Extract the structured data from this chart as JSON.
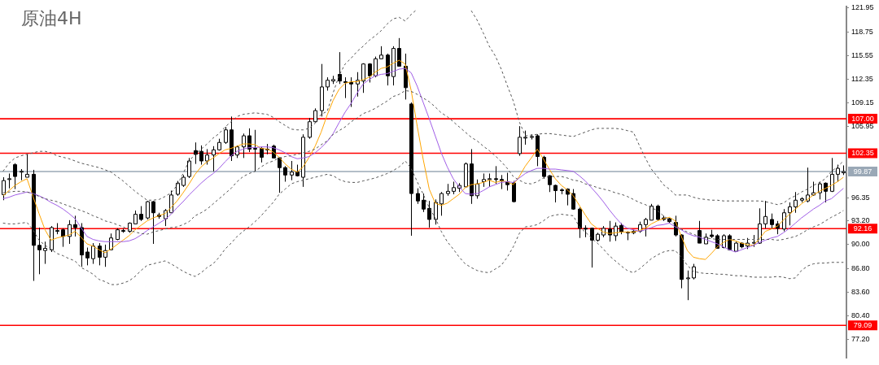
{
  "chart_data": {
    "type": "candlestick",
    "title": "原油4H",
    "categories": [
      null,
      null,
      null,
      null,
      null,
      null,
      null,
      null,
      null,
      null,
      null,
      null,
      null,
      null,
      null,
      null,
      null,
      null,
      null,
      null,
      null,
      null,
      null,
      null,
      null,
      null,
      null,
      null,
      null,
      null,
      null,
      null,
      null,
      null,
      null,
      null,
      null,
      null,
      null,
      null,
      null,
      null,
      null,
      null,
      null,
      null,
      null,
      null,
      null,
      null,
      null,
      null,
      null,
      null,
      null,
      null,
      null,
      null,
      null,
      null,
      null,
      null,
      null,
      null,
      null,
      null,
      null,
      null,
      null,
      null,
      null,
      null,
      null,
      null,
      null,
      null,
      null,
      null,
      null,
      null,
      null,
      null,
      null,
      null,
      null,
      null,
      null,
      null,
      null,
      null,
      null,
      null,
      null,
      null,
      null,
      null,
      null,
      null,
      null,
      null,
      null,
      null,
      null,
      null,
      null,
      null,
      null,
      null,
      null,
      null,
      null,
      null,
      null,
      null,
      null,
      null,
      null,
      null,
      null,
      null,
      null,
      null,
      null,
      null,
      null,
      null,
      null,
      null,
      null,
      null,
      null,
      null,
      null,
      null,
      null,
      null,
      null,
      null,
      null,
      null,
      null
    ],
    "ohlc": [
      [
        96.75,
        99.1,
        96.0,
        98.65
      ],
      [
        98.8,
        99.6,
        97.6,
        98.9
      ],
      [
        100.8,
        101.0,
        97.5,
        99.2
      ],
      [
        99.8,
        100.2,
        98.7,
        99.9
      ],
      [
        99.1,
        102.2,
        99.1,
        99.5
      ],
      [
        99.5,
        100.1,
        85.1,
        89.9
      ],
      [
        89.9,
        92.3,
        86.0,
        89.3
      ],
      [
        89.2,
        90.4,
        87.4,
        89.5
      ],
      [
        89.3,
        92.5,
        89.0,
        92.3
      ],
      [
        91.8,
        92.9,
        91.4,
        91.9
      ],
      [
        92.0,
        92.2,
        89.7,
        91.1
      ],
      [
        91.1,
        93.3,
        90.1,
        92.7
      ],
      [
        92.7,
        93.9,
        91.1,
        92.3
      ],
      [
        92.3,
        92.9,
        87.0,
        88.6
      ],
      [
        89.0,
        89.6,
        87.2,
        88.2
      ],
      [
        88.1,
        90.2,
        87.4,
        89.8
      ],
      [
        89.8,
        90.2,
        87.2,
        88.3
      ],
      [
        88.3,
        90.0,
        87.0,
        89.2
      ],
      [
        89.3,
        91.5,
        89.3,
        90.9
      ],
      [
        90.7,
        92.2,
        90.6,
        92.0
      ],
      [
        91.9,
        92.2,
        91.6,
        91.8
      ],
      [
        91.8,
        93.0,
        91.6,
        92.9
      ],
      [
        92.8,
        94.6,
        92.8,
        94.1
      ],
      [
        94.1,
        95.2,
        93.2,
        93.4
      ],
      [
        93.6,
        95.9,
        93.4,
        95.8
      ],
      [
        95.8,
        95.9,
        90.1,
        94.3
      ],
      [
        94.0,
        94.3,
        93.5,
        93.8
      ],
      [
        93.5,
        94.8,
        92.5,
        94.6
      ],
      [
        94.3,
        97.3,
        94.3,
        96.7
      ],
      [
        96.8,
        98.6,
        96.6,
        98.3
      ],
      [
        98.0,
        99.4,
        97.8,
        99.1
      ],
      [
        99.2,
        101.7,
        99.0,
        101.3
      ],
      [
        102.7,
        103.8,
        100.9,
        102.2
      ],
      [
        102.6,
        103.4,
        100.8,
        101.3
      ],
      [
        101.3,
        102.9,
        100.8,
        102.1
      ],
      [
        102.1,
        103.3,
        99.9,
        102.8
      ],
      [
        102.8,
        104.3,
        102.7,
        103.8
      ],
      [
        103.8,
        105.9,
        103.6,
        105.5
      ],
      [
        105.5,
        107.3,
        101.3,
        102.0
      ],
      [
        102.1,
        103.4,
        101.7,
        103.2
      ],
      [
        103.2,
        105.0,
        101.7,
        104.7
      ],
      [
        104.7,
        105.7,
        102.5,
        102.9
      ],
      [
        102.9,
        105.5,
        99.9,
        103.0
      ],
      [
        103.0,
        103.2,
        101.1,
        101.8
      ],
      [
        102.8,
        103.6,
        102.2,
        102.9
      ],
      [
        103.3,
        103.5,
        101.7,
        101.7
      ],
      [
        101.7,
        101.8,
        97.0,
        100.4
      ],
      [
        100.4,
        100.6,
        98.5,
        99.4
      ],
      [
        99.4,
        101.3,
        98.7,
        99.8
      ],
      [
        99.8,
        100.8,
        99.2,
        99.3
      ],
      [
        99.1,
        104.9,
        97.8,
        104.5
      ],
      [
        104.5,
        107.1,
        104.3,
        106.6
      ],
      [
        106.6,
        108.4,
        106.5,
        108.1
      ],
      [
        108.1,
        114.4,
        107.3,
        111.3
      ],
      [
        111.3,
        112.6,
        110.8,
        112.2
      ],
      [
        112.1,
        112.8,
        111.7,
        112.3
      ],
      [
        113.0,
        116.0,
        111.7,
        112.1
      ],
      [
        112.0,
        112.6,
        109.8,
        111.9
      ],
      [
        111.9,
        112.6,
        108.6,
        111.7
      ],
      [
        111.7,
        113.3,
        110.0,
        112.2
      ],
      [
        112.1,
        114.5,
        110.5,
        114.4
      ],
      [
        114.4,
        114.5,
        111.9,
        112.8
      ],
      [
        112.8,
        115.4,
        112.6,
        115.1
      ],
      [
        115.1,
        116.8,
        115.1,
        115.6
      ],
      [
        115.6,
        115.8,
        111.5,
        112.8
      ],
      [
        112.7,
        116.8,
        111.5,
        116.5
      ],
      [
        116.5,
        117.9,
        114.1,
        114.1
      ],
      [
        114.1,
        115.8,
        109.6,
        111.2
      ],
      [
        109.0,
        109.2,
        91.2,
        96.9
      ],
      [
        96.9,
        97.6,
        95.5,
        95.9
      ],
      [
        96.0,
        96.9,
        94.4,
        94.8
      ],
      [
        94.9,
        95.9,
        92.3,
        93.4
      ],
      [
        93.4,
        96.1,
        92.7,
        95.7
      ],
      [
        95.5,
        97.1,
        93.9,
        96.9
      ],
      [
        96.9,
        98.2,
        96.6,
        97.2
      ],
      [
        97.2,
        98.5,
        96.8,
        97.7
      ],
      [
        97.6,
        98.3,
        97.1,
        98.0
      ],
      [
        97.8,
        101.1,
        97.8,
        100.9
      ],
      [
        100.9,
        102.9,
        95.5,
        96.6
      ],
      [
        96.6,
        98.8,
        96.2,
        98.2
      ],
      [
        98.5,
        99.6,
        97.8,
        98.8
      ],
      [
        98.8,
        99.6,
        97.8,
        98.9
      ],
      [
        98.9,
        100.6,
        98.2,
        98.8
      ],
      [
        98.8,
        99.4,
        97.5,
        98.6
      ],
      [
        98.5,
        99.7,
        97.3,
        98.1
      ],
      [
        98.3,
        98.6,
        95.7,
        95.8
      ],
      [
        102.3,
        106.0,
        102.0,
        104.5
      ],
      [
        104.4,
        105.4,
        103.5,
        104.5
      ],
      [
        104.5,
        104.9,
        104.2,
        104.6
      ],
      [
        104.7,
        104.9,
        100.6,
        101.9
      ],
      [
        101.8,
        102.0,
        98.9,
        99.2
      ],
      [
        99.3,
        99.4,
        97.1,
        98.1
      ],
      [
        98.0,
        98.1,
        95.7,
        97.3
      ],
      [
        97.4,
        97.6,
        96.8,
        97.3
      ],
      [
        97.5,
        97.6,
        95.3,
        96.8
      ],
      [
        96.9,
        97.5,
        94.7,
        94.8
      ],
      [
        94.8,
        95.0,
        90.9,
        92.2
      ],
      [
        92.2,
        92.6,
        91.0,
        92.1
      ],
      [
        92.2,
        92.3,
        86.9,
        90.6
      ],
      [
        90.6,
        91.6,
        90.4,
        91.4
      ],
      [
        91.3,
        92.5,
        91.0,
        92.2
      ],
      [
        92.1,
        93.2,
        90.4,
        91.3
      ],
      [
        91.2,
        93.0,
        90.5,
        92.5
      ],
      [
        92.6,
        92.9,
        91.4,
        91.7
      ],
      [
        91.7,
        91.8,
        90.6,
        91.6
      ],
      [
        91.6,
        92.0,
        91.4,
        91.8
      ],
      [
        91.8,
        93.1,
        91.6,
        92.7
      ],
      [
        92.7,
        93.6,
        91.1,
        93.4
      ],
      [
        93.3,
        95.5,
        93.3,
        95.2
      ],
      [
        95.2,
        95.4,
        93.3,
        93.4
      ],
      [
        93.6,
        93.9,
        93.2,
        93.4
      ],
      [
        93.5,
        93.6,
        92.9,
        93.1
      ],
      [
        93.0,
        93.9,
        91.1,
        91.3
      ],
      [
        91.3,
        91.4,
        84.1,
        85.3
      ],
      [
        85.4,
        86.5,
        82.5,
        85.5
      ],
      [
        85.5,
        87.4,
        85.3,
        87.0
      ],
      [
        91.9,
        93.2,
        90.2,
        90.2
      ],
      [
        90.1,
        91.5,
        90.1,
        91.0
      ],
      [
        91.3,
        92.0,
        90.9,
        91.1
      ],
      [
        91.2,
        91.4,
        89.5,
        89.5
      ],
      [
        89.6,
        91.4,
        89.5,
        91.2
      ],
      [
        91.2,
        91.4,
        89.2,
        89.3
      ],
      [
        89.1,
        90.4,
        89.1,
        90.2
      ],
      [
        90.2,
        90.3,
        89.5,
        89.7
      ],
      [
        89.8,
        90.9,
        89.4,
        90.2
      ],
      [
        90.2,
        91.3,
        89.7,
        90.3
      ],
      [
        90.2,
        94.9,
        90.1,
        92.8
      ],
      [
        92.8,
        95.9,
        92.2,
        93.8
      ],
      [
        93.4,
        94.2,
        92.1,
        92.7
      ],
      [
        92.8,
        93.2,
        91.4,
        92.2
      ],
      [
        92.1,
        94.8,
        91.8,
        94.3
      ],
      [
        94.3,
        95.7,
        92.6,
        95.1
      ],
      [
        95.1,
        97.1,
        94.3,
        96.0
      ],
      [
        96.0,
        96.4,
        95.7,
        96.2
      ],
      [
        95.9,
        100.4,
        95.7,
        96.7
      ],
      [
        96.7,
        98.5,
        96.6,
        97.0
      ],
      [
        97.0,
        98.5,
        96.1,
        98.2
      ],
      [
        98.3,
        98.4,
        95.7,
        97.2
      ],
      [
        97.2,
        101.7,
        97.1,
        99.5
      ],
      [
        99.5,
        100.8,
        98.5,
        100.3
      ],
      [
        99.7,
        100.7,
        99.4,
        99.87
      ]
    ],
    "series": [
      {
        "type": "line",
        "color": "#555555",
        "line_style": "dashed",
        "values": [
          99.9,
          101.0,
          101.7,
          102.0,
          102.2,
          102.4,
          102.6,
          102.6,
          102.4,
          102.0,
          101.8,
          101.6,
          101.3,
          101.0,
          100.8,
          100.6,
          100.4,
          100.1,
          99.8,
          99.2,
          98.6,
          97.9,
          97.2,
          96.6,
          96.0,
          96.0,
          96.1,
          96.5,
          97.0,
          98.0,
          99.6,
          101.3,
          102.2,
          102.9,
          103.6,
          104.4,
          105.0,
          105.9,
          106.6,
          107.3,
          107.6,
          107.7,
          107.8,
          107.7,
          107.6,
          107.2,
          106.6,
          106.1,
          105.6,
          105.5,
          105.5,
          105.7,
          106.4,
          107.6,
          108.0,
          110.5,
          112.9,
          114.4,
          115.2,
          116.1,
          116.8,
          117.6,
          118.2,
          118.9,
          119.8,
          120.5,
          120.7,
          120.2,
          121.1,
          121.8,
          null,
          null,
          null,
          null,
          null,
          null,
          null,
          null,
          121.6,
          120.3,
          118.6,
          116.8,
          115.5,
          113.7,
          111.5,
          109.4,
          106.6,
          104.7,
          104.8,
          104.9,
          105.0,
          105.0,
          104.9,
          104.8,
          104.7,
          104.6,
          104.9,
          105.2,
          105.5,
          105.7,
          105.7,
          105.7,
          105.7,
          105.6,
          105.4,
          105.2,
          103.4,
          101.7,
          100.2,
          99.2,
          98.1,
          97.5,
          96.7,
          96.7,
          96.7,
          96.4,
          96.2,
          96.1,
          96.0,
          96.0,
          95.9,
          95.9,
          95.9,
          95.9,
          95.9,
          95.9,
          95.9,
          95.8,
          95.6,
          95.4,
          95.6,
          96.2,
          96.6,
          97.1,
          97.5,
          98.0,
          98.4,
          98.9,
          99.9,
          100.5,
          101.3
        ]
      },
      {
        "type": "line",
        "color": "#555555",
        "line_style": "dashed",
        "values": [
          97.0,
          97.1,
          97.2,
          97.2,
          97.1,
          96.9,
          96.5,
          96.2,
          96.0,
          95.8,
          95.5,
          95.2,
          94.9,
          94.6,
          94.3,
          93.9,
          93.6,
          93.2,
          93.0,
          92.7,
          92.4,
          92.0,
          91.7,
          91.5,
          91.4,
          91.7,
          91.9,
          92.1,
          92.3,
          92.4,
          92.7,
          93.1,
          93.9,
          94.3,
          94.8,
          95.5,
          96.2,
          96.9,
          97.6,
          98.5,
          99.2,
          99.6,
          99.9,
          100.5,
          101.0,
          101.3,
          101.7,
          101.9,
          102.0,
          102.2,
          102.4,
          102.6,
          102.9,
          103.5,
          104.0,
          104.9,
          105.4,
          105.9,
          106.6,
          107.1,
          107.7,
          108.0,
          108.4,
          108.9,
          109.4,
          110.0,
          110.3,
          110.8,
          110.7,
          110.3,
          109.8,
          109.3,
          108.6,
          107.8,
          107.3,
          106.6,
          105.9,
          105.2,
          104.5,
          104.0,
          103.3,
          102.7,
          102.0,
          101.2,
          100.3,
          99.2,
          98.7,
          98.3,
          98.2,
          98.5,
          99.0,
          99.2,
          99.2,
          99.2,
          99.0,
          98.7,
          98.6,
          98.2,
          98.0,
          97.7,
          97.5,
          97.3,
          97.0,
          96.8,
          96.5,
          96.1,
          95.7,
          95.4,
          95.0,
          94.6,
          93.9,
          93.3,
          92.6,
          92.1,
          91.7,
          91.4,
          91.1,
          90.9,
          90.8,
          90.7,
          90.7,
          90.7,
          90.7,
          90.7,
          90.7,
          90.7,
          90.7,
          90.7,
          90.7,
          90.6,
          90.7,
          90.9,
          91.1,
          91.5,
          92.0,
          92.4,
          92.7,
          93.2,
          93.7,
          94.1,
          94.6
        ]
      },
      {
        "type": "line",
        "color": "#555555",
        "line_style": "dashed",
        "values": [
          92.9,
          92.8,
          92.8,
          92.9,
          93.0,
          92.0,
          90.6,
          89.9,
          89.4,
          88.8,
          88.5,
          88.1,
          87.8,
          86.9,
          86.5,
          86.0,
          85.3,
          85.0,
          84.6,
          84.6,
          84.8,
          85.1,
          85.7,
          86.5,
          87.2,
          87.4,
          87.6,
          87.8,
          87.4,
          86.9,
          86.4,
          86.0,
          85.7,
          86.2,
          86.9,
          87.4,
          88.3,
          89.4,
          90.2,
          91.1,
          91.8,
          92.4,
          93.1,
          93.9,
          94.8,
          95.7,
          96.8,
          97.5,
          98.2,
          98.5,
          98.7,
          98.9,
          99.1,
          99.3,
          99.5,
          99.3,
          98.8,
          98.5,
          98.4,
          98.4,
          98.6,
          98.8,
          99.0,
          99.3,
          99.6,
          100.0,
          100.5,
          101.3,
          100.3,
          98.5,
          96.8,
          95.0,
          93.6,
          91.8,
          90.4,
          89.4,
          88.3,
          87.4,
          86.9,
          86.5,
          86.3,
          86.2,
          86.7,
          87.2,
          88.3,
          89.7,
          91.5,
          92.4,
          92.5,
          92.7,
          93.2,
          93.8,
          94.0,
          94.1,
          94.0,
          93.9,
          92.4,
          91.7,
          90.9,
          90.2,
          89.4,
          88.5,
          87.8,
          87.1,
          86.5,
          86.2,
          86.7,
          87.4,
          88.1,
          88.6,
          89.0,
          89.2,
          89.2,
          88.3,
          87.2,
          86.4,
          86.2,
          86.1,
          86.1,
          86.0,
          86.0,
          85.9,
          85.8,
          85.8,
          85.7,
          85.6,
          85.6,
          85.6,
          85.6,
          85.7,
          85.6,
          85.4,
          85.5,
          86.5,
          87.1,
          87.4,
          87.5,
          87.5,
          87.6,
          87.6,
          87.6
        ]
      },
      {
        "type": "line",
        "color": "#a05ee6",
        "values": [
          96.2,
          96.4,
          96.7,
          96.9,
          97.1,
          96.9,
          96.6,
          96.2,
          95.7,
          95.3,
          94.8,
          94.2,
          93.5,
          92.3,
          91.1,
          90.7,
          90.5,
          90.4,
          90.4,
          90.4,
          90.4,
          90.5,
          90.8,
          91.3,
          91.9,
          92.4,
          92.9,
          93.4,
          94.1,
          95.0,
          95.8,
          96.7,
          97.5,
          98.3,
          99.0,
          99.6,
          100.3,
          101.2,
          102.0,
          102.6,
          102.9,
          103.1,
          103.1,
          103.2,
          103.2,
          103.1,
          102.8,
          102.4,
          101.9,
          101.6,
          101.7,
          101.9,
          102.4,
          103.1,
          103.9,
          105.0,
          106.5,
          107.9,
          109.1,
          110.5,
          111.7,
          112.3,
          112.8,
          113.0,
          113.1,
          113.4,
          113.7,
          113.8,
          113.2,
          111.4,
          109.2,
          107.0,
          104.7,
          102.4,
          100.5,
          98.9,
          97.8,
          96.9,
          96.8,
          96.9,
          97.3,
          97.8,
          98.1,
          98.4,
          98.5,
          98.4,
          99.0,
          99.6,
          100.0,
          100.3,
          100.3,
          100.2,
          100.2,
          100.1,
          100.0,
          99.9,
          99.3,
          98.6,
          97.7,
          96.8,
          95.8,
          94.7,
          93.7,
          92.8,
          92.2,
          92.0,
          91.8,
          92.0,
          92.3,
          92.6,
          92.7,
          92.9,
          92.4,
          92.0,
          91.5,
          91.2,
          91.0,
          90.7,
          90.4,
          90.1,
          89.7,
          89.3,
          89.0,
          89.3,
          89.6,
          89.9,
          90.3,
          90.6,
          90.9,
          91.1,
          91.6,
          92.2,
          92.9,
          93.6,
          94.2,
          94.8,
          95.3,
          95.9,
          96.2,
          96.9,
          97.6
        ]
      },
      {
        "type": "line",
        "color": "#ffa500",
        "values": [
          96.6,
          97.3,
          98.0,
          98.5,
          98.9,
          96.5,
          94.2,
          92.0,
          90.6,
          90.9,
          91.1,
          91.3,
          91.8,
          91.0,
          90.1,
          89.8,
          89.3,
          88.9,
          89.4,
          90.0,
          90.6,
          91.2,
          92.0,
          92.6,
          93.2,
          93.6,
          93.9,
          94.2,
          95.0,
          95.9,
          97.0,
          98.2,
          99.5,
          100.5,
          101.2,
          101.7,
          102.3,
          102.8,
          103.0,
          103.3,
          103.6,
          103.6,
          103.5,
          103.0,
          102.9,
          102.5,
          101.8,
          100.9,
          100.2,
          99.8,
          100.5,
          101.8,
          103.3,
          105.2,
          107.5,
          109.5,
          111.0,
          111.8,
          112.0,
          112.0,
          112.3,
          112.6,
          113.3,
          113.8,
          114.0,
          114.5,
          114.9,
          114.4,
          110.8,
          106.0,
          101.5,
          97.5,
          95.6,
          95.3,
          95.6,
          96.2,
          96.8,
          97.7,
          98.1,
          98.2,
          98.4,
          98.7,
          98.4,
          98.6,
          98.5,
          98.1,
          99.2,
          100.6,
          101.7,
          102.9,
          101.6,
          100.2,
          98.9,
          98.0,
          97.4,
          96.6,
          95.3,
          94.0,
          92.8,
          92.2,
          91.7,
          91.5,
          91.6,
          91.7,
          91.7,
          91.7,
          91.9,
          92.2,
          92.8,
          93.2,
          93.5,
          93.7,
          93.2,
          91.1,
          89.2,
          88.3,
          88.1,
          88.0,
          88.8,
          89.7,
          90.3,
          90.7,
          90.5,
          90.2,
          90.0,
          89.9,
          90.8,
          91.8,
          92.1,
          92.5,
          93.3,
          94.1,
          94.8,
          95.5,
          96.1,
          96.7,
          97.2,
          97.6,
          98.0,
          98.5,
          99.1
        ]
      }
    ],
    "ylim": [
      74.66,
      122.12
    ],
    "yticks": [
      {
        "value": 121.95,
        "label": "121.95"
      },
      {
        "value": 118.75,
        "label": "118.75"
      },
      {
        "value": 115.55,
        "label": "115.55"
      },
      {
        "value": 112.35,
        "label": "112.35"
      },
      {
        "value": 109.15,
        "label": "109.15"
      },
      {
        "value": 105.95,
        "label": "105.95"
      },
      {
        "value": 96.35,
        "label": "96.35"
      },
      {
        "value": 93.2,
        "label": "93.20"
      },
      {
        "value": 90,
        "label": "90.00"
      },
      {
        "value": 86.8,
        "label": "86.80"
      },
      {
        "value": 83.6,
        "label": "83.60"
      },
      {
        "value": 80.4,
        "label": "80.40"
      },
      {
        "value": 77.2,
        "label": "77.20"
      }
    ],
    "ref_lines": [
      {
        "axis": "y",
        "value": 107,
        "label": "107.00",
        "color": "#ff0000"
      },
      {
        "axis": "y",
        "value": 102.35,
        "label": "102.35",
        "color": "#ff0000"
      },
      {
        "axis": "y",
        "value": 99.87,
        "label": "99.87",
        "color": "#9aa8b6"
      },
      {
        "axis": "y",
        "value": 92.16,
        "label": "92.16",
        "color": "#ff0000"
      },
      {
        "axis": "y",
        "value": 79.09,
        "label": "79.09",
        "color": "#ff0000"
      }
    ],
    "tick_labels": "y"
  }
}
